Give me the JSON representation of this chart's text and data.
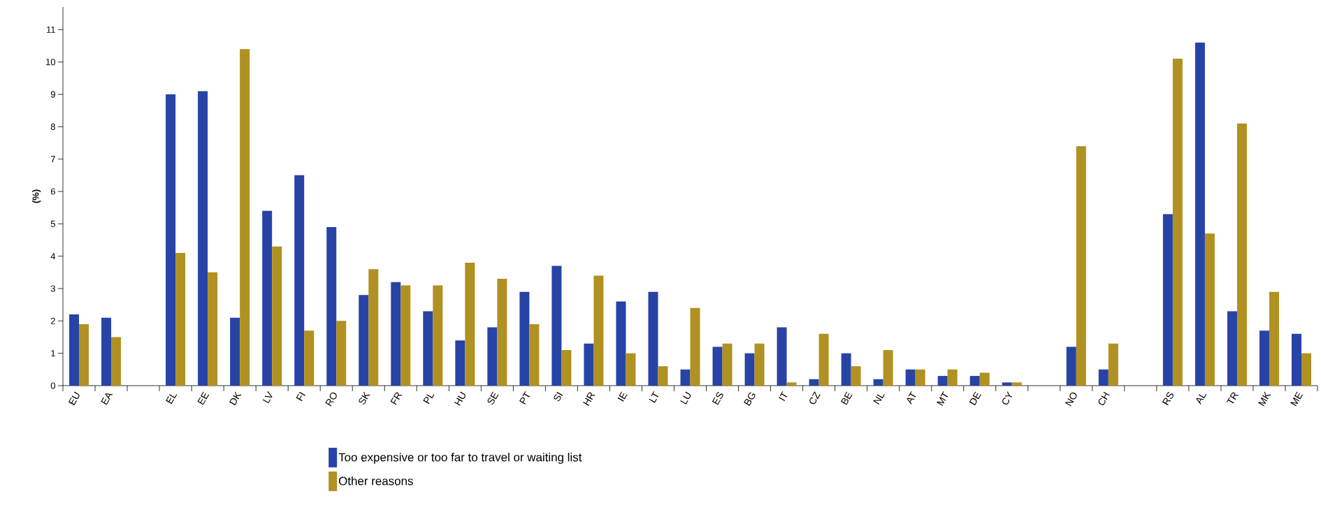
{
  "chart_data": {
    "type": "bar",
    "ylabel": "(%)",
    "categories": [
      "EU",
      "EA",
      null,
      "EL",
      "EE",
      "DK",
      "LV",
      "FI",
      "RO",
      "SK",
      "FR",
      "PL",
      "HU",
      "SE",
      "PT",
      "SI",
      "HR",
      "IE",
      "LT",
      "LU",
      "ES",
      "BG",
      "IT",
      "CZ",
      "BE",
      "NL",
      "AT",
      "MT",
      "DE",
      "CY",
      null,
      "NO",
      "CH",
      null,
      "RS",
      "AL",
      "TR",
      "MK",
      "ME"
    ],
    "series": [
      {
        "name": "Too expensive or too far to travel or waiting list",
        "color": "#2743a6",
        "values": [
          2.2,
          2.1,
          null,
          9.0,
          9.1,
          2.1,
          5.4,
          6.5,
          4.9,
          2.8,
          3.2,
          2.3,
          1.4,
          1.8,
          2.9,
          3.7,
          1.3,
          2.6,
          2.9,
          0.5,
          1.2,
          1.0,
          1.8,
          0.2,
          1.0,
          0.2,
          0.5,
          0.3,
          0.3,
          0.1,
          null,
          1.2,
          0.5,
          null,
          5.3,
          10.6,
          2.3,
          1.7,
          1.6
        ]
      },
      {
        "name": "Other reasons",
        "color": "#b09122",
        "values": [
          1.9,
          1.5,
          null,
          4.1,
          3.5,
          10.4,
          4.3,
          1.7,
          2.0,
          3.6,
          3.1,
          3.1,
          3.8,
          3.3,
          1.9,
          1.1,
          3.4,
          1.0,
          0.6,
          2.4,
          1.3,
          1.3,
          0.1,
          1.6,
          0.6,
          1.1,
          0.5,
          0.5,
          0.4,
          0.1,
          null,
          7.4,
          1.3,
          null,
          10.1,
          4.7,
          8.1,
          2.9,
          1.0
        ]
      }
    ],
    "ylim": [
      0,
      11.7
    ],
    "yticks": [
      0,
      1,
      2,
      3,
      4,
      5,
      6,
      7,
      8,
      9,
      10,
      11
    ],
    "legend": "bottom"
  }
}
